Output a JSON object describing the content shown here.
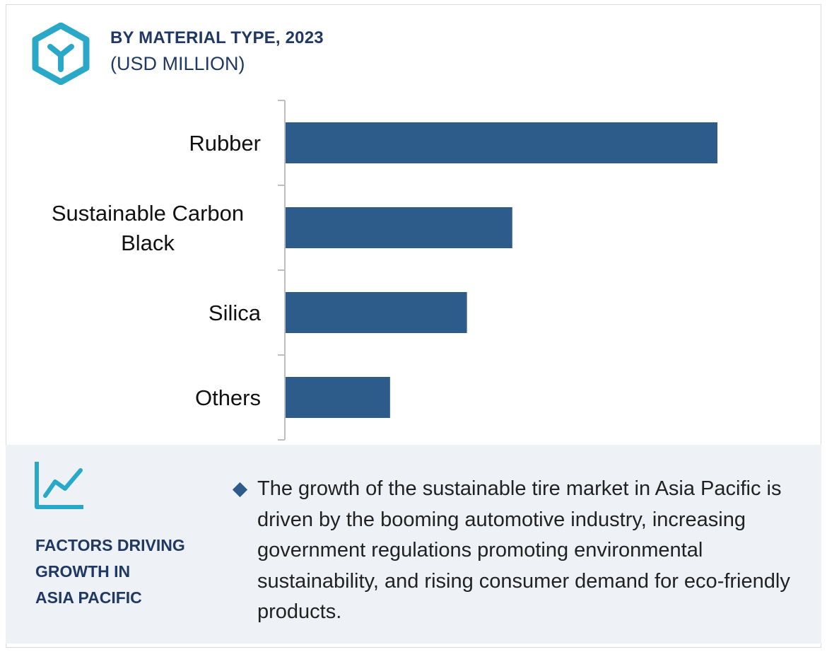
{
  "header": {
    "title": "BY MATERIAL TYPE, 2023",
    "subtitle": "(USD MILLION)",
    "logo_icon": "hexagon-y-logo-icon"
  },
  "colors": {
    "bar": "#2e5c8a",
    "title": "#1f3864",
    "accent": "#2aa8c8",
    "panel": "#eef2f7"
  },
  "chart_data": {
    "type": "bar",
    "orientation": "horizontal",
    "categories": [
      "Rubber",
      "Sustainable Carbon Black",
      "Silica",
      "Others"
    ],
    "category_display": [
      [
        "Rubber"
      ],
      [
        "Sustainable Carbon",
        "Black"
      ],
      [
        "Silica"
      ],
      [
        "Others"
      ]
    ],
    "values": [
      100,
      52.5,
      42,
      24.2
    ],
    "value_note": "relative scale; no numeric axis shown",
    "xlim": [
      0,
      100
    ],
    "title": "BY MATERIAL TYPE, 2023",
    "subtitle": "(USD MILLION)",
    "grid": false,
    "legend": "none"
  },
  "factors": {
    "icon": "trend-line-chart-icon",
    "heading_lines": [
      "FACTORS DRIVING",
      "GROWTH IN",
      "ASIA PACIFIC"
    ],
    "bullet_icon": "diamond-bullet-icon",
    "bullet_text": "The growth of the sustainable tire market in Asia Pacific is driven by the booming automotive industry, increasing government regulations promoting environmental sustainability, and rising consumer demand for eco-friendly products."
  }
}
